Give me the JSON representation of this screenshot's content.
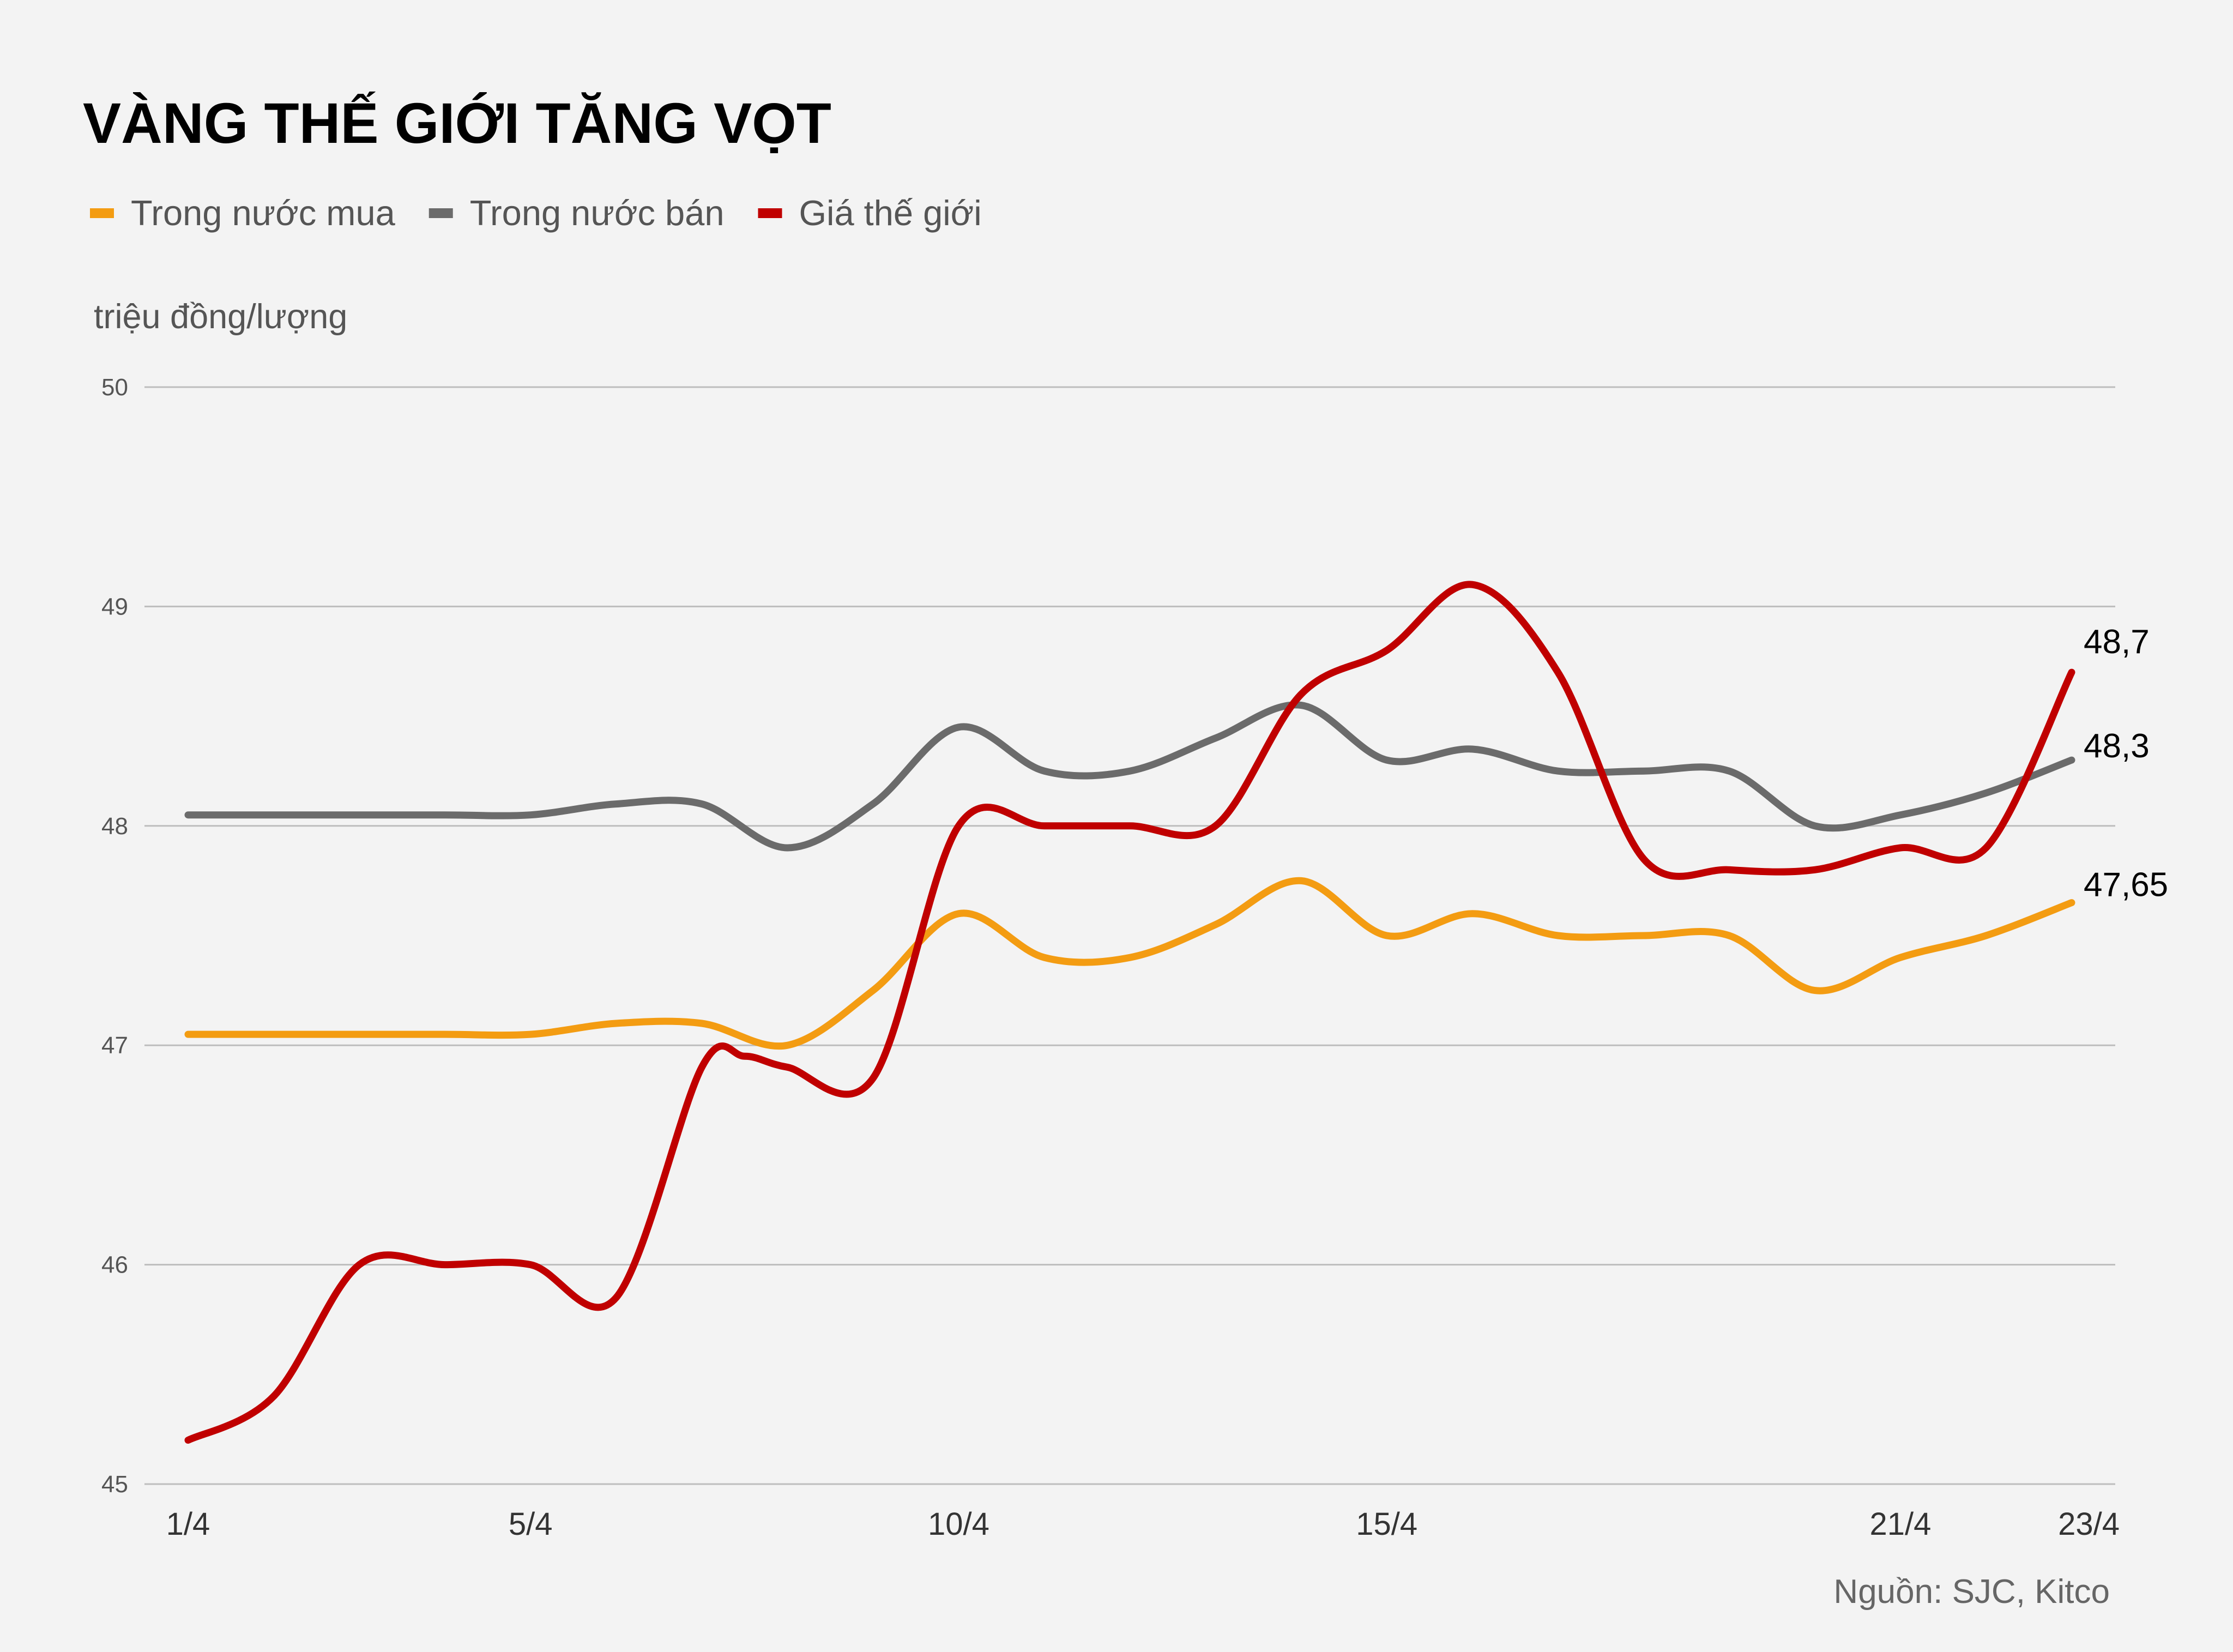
{
  "chart_data": {
    "type": "line",
    "title": "VÀNG THẾ GIỚI TĂNG VỌT",
    "ylabel": "triệu đồng/lượng",
    "ylim": [
      45,
      50
    ],
    "yticks": [
      "45",
      "46",
      "47",
      "48",
      "49",
      "50"
    ],
    "xlim": [
      1,
      23
    ],
    "xticks": [
      {
        "label": "1/4",
        "day": 1
      },
      {
        "label": "5/4",
        "day": 5
      },
      {
        "label": "10/4",
        "day": 10
      },
      {
        "label": "15/4",
        "day": 15
      },
      {
        "label": "21/4",
        "day": 21
      },
      {
        "label": "23/4",
        "day": 23
      }
    ],
    "series": [
      {
        "name": "Trong nước mua",
        "color": "#f39c12",
        "end_label": "47,65",
        "points": [
          [
            1,
            47.05
          ],
          [
            2,
            47.05
          ],
          [
            3,
            47.05
          ],
          [
            4,
            47.05
          ],
          [
            5,
            47.05
          ],
          [
            6,
            47.1
          ],
          [
            7,
            47.1
          ],
          [
            8,
            47.0
          ],
          [
            9,
            47.25
          ],
          [
            10,
            47.6
          ],
          [
            11,
            47.4
          ],
          [
            12,
            47.4
          ],
          [
            13,
            47.55
          ],
          [
            14,
            47.75
          ],
          [
            15,
            47.5
          ],
          [
            16,
            47.6
          ],
          [
            17,
            47.5
          ],
          [
            18,
            47.5
          ],
          [
            19,
            47.5
          ],
          [
            20,
            47.25
          ],
          [
            21,
            47.4
          ],
          [
            22,
            47.5
          ],
          [
            23,
            47.65
          ]
        ]
      },
      {
        "name": "Trong nước bán",
        "color": "#6b6b6b",
        "end_label": "48,3",
        "points": [
          [
            1,
            48.05
          ],
          [
            2,
            48.05
          ],
          [
            3,
            48.05
          ],
          [
            4,
            48.05
          ],
          [
            5,
            48.05
          ],
          [
            6,
            48.1
          ],
          [
            7,
            48.1
          ],
          [
            8,
            47.9
          ],
          [
            9,
            48.1
          ],
          [
            10,
            48.45
          ],
          [
            11,
            48.25
          ],
          [
            12,
            48.25
          ],
          [
            13,
            48.4
          ],
          [
            14,
            48.55
          ],
          [
            15,
            48.3
          ],
          [
            16,
            48.35
          ],
          [
            17,
            48.25
          ],
          [
            18,
            48.25
          ],
          [
            19,
            48.25
          ],
          [
            20,
            48.0
          ],
          [
            21,
            48.05
          ],
          [
            22,
            48.15
          ],
          [
            23,
            48.3
          ]
        ]
      },
      {
        "name": "Giá thế giới",
        "color": "#c00000",
        "end_label": "48,7",
        "points": [
          [
            1,
            45.2
          ],
          [
            2,
            45.4
          ],
          [
            3,
            46.0
          ],
          [
            4,
            46.0
          ],
          [
            5,
            46.0
          ],
          [
            6,
            45.85
          ],
          [
            7,
            46.9
          ],
          [
            7.5,
            46.95
          ],
          [
            8,
            46.9
          ],
          [
            9,
            46.85
          ],
          [
            10,
            48.0
          ],
          [
            11,
            48.0
          ],
          [
            12,
            48.0
          ],
          [
            13,
            48.0
          ],
          [
            14,
            48.6
          ],
          [
            15,
            48.8
          ],
          [
            16,
            49.1
          ],
          [
            17,
            48.7
          ],
          [
            18,
            47.85
          ],
          [
            19,
            47.8
          ],
          [
            20,
            47.8
          ],
          [
            21,
            47.9
          ],
          [
            22,
            47.9
          ],
          [
            23,
            48.7
          ]
        ]
      }
    ]
  },
  "source": "Nguồn: SJC, Kitco"
}
